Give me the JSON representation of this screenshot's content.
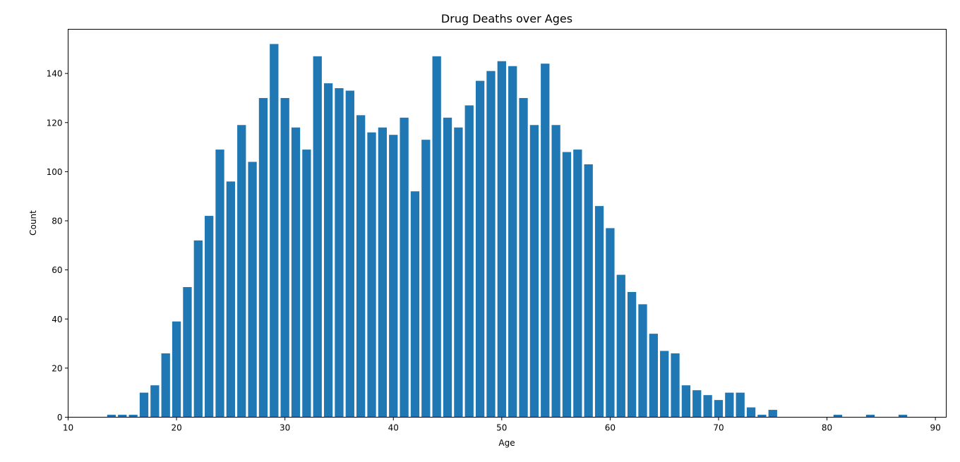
{
  "chart_data": {
    "type": "bar",
    "title": "Drug Deaths over Ages",
    "xlabel": "Age",
    "ylabel": "Count",
    "xlim": [
      10,
      91
    ],
    "ylim": [
      0,
      158
    ],
    "xticks": [
      10,
      20,
      30,
      40,
      50,
      60,
      70,
      80,
      90
    ],
    "yticks": [
      0,
      20,
      40,
      60,
      80,
      100,
      120,
      140
    ],
    "bar_color": "#1f77b4",
    "grid": false,
    "x": [
      14,
      15,
      16,
      17,
      18,
      19,
      20,
      21,
      22,
      23,
      24,
      25,
      26,
      27,
      28,
      29,
      30,
      31,
      32,
      33,
      34,
      35,
      36,
      37,
      38,
      39,
      40,
      41,
      42,
      43,
      44,
      45,
      46,
      47,
      48,
      49,
      50,
      51,
      52,
      53,
      54,
      55,
      56,
      57,
      58,
      59,
      60,
      61,
      62,
      63,
      64,
      65,
      66,
      67,
      68,
      69,
      70,
      71,
      72,
      73,
      74,
      75,
      81,
      84,
      87
    ],
    "values": [
      1,
      1,
      1,
      10,
      13,
      26,
      39,
      53,
      72,
      82,
      109,
      96,
      119,
      104,
      130,
      152,
      130,
      118,
      109,
      147,
      136,
      134,
      133,
      123,
      116,
      118,
      115,
      122,
      92,
      113,
      147,
      122,
      118,
      127,
      137,
      141,
      145,
      143,
      130,
      119,
      144,
      119,
      108,
      109,
      103,
      86,
      77,
      58,
      51,
      46,
      34,
      27,
      26,
      13,
      11,
      9,
      7,
      10,
      10,
      4,
      1,
      3,
      1,
      1,
      1
    ]
  }
}
